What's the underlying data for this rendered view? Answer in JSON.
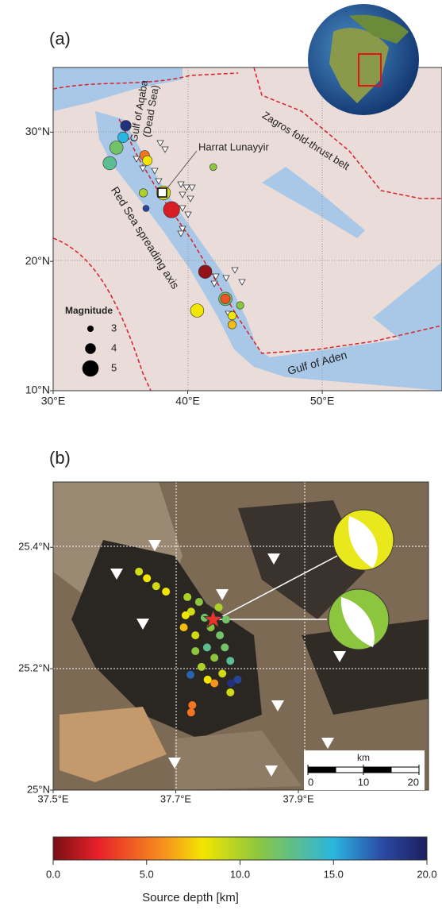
{
  "panel_a": {
    "label": "(a)",
    "xlim": [
      30,
      58.9
    ],
    "ylim": [
      10,
      35
    ],
    "xticks": [
      {
        "value": 30,
        "label": "30°E"
      },
      {
        "value": 40,
        "label": "40°E"
      },
      {
        "value": 50,
        "label": "50°E"
      }
    ],
    "yticks": [
      {
        "value": 10,
        "label": "10°N"
      },
      {
        "value": 20,
        "label": "20°N"
      },
      {
        "value": 30,
        "label": "30°N"
      }
    ],
    "annotations": {
      "aqaba": "Gulf of Aqaba",
      "dead_sea": "(Dead Sea)",
      "zagros": "Zagros fold-thrust belt",
      "harrat": "Harrat Lunayyir",
      "red_sea": "Red Sea spreading axis",
      "aden": "Gulf of Aden"
    },
    "legend": {
      "title": "Magnitude",
      "sizes": [
        3,
        4,
        5
      ]
    },
    "events": [
      {
        "lon": 35.4,
        "lat": 30.5,
        "depth": 19,
        "mag": 4
      },
      {
        "lon": 35.2,
        "lat": 29.6,
        "depth": 15,
        "mag": 4
      },
      {
        "lon": 34.7,
        "lat": 28.8,
        "depth": 12,
        "mag": 4.5
      },
      {
        "lon": 34.2,
        "lat": 27.6,
        "depth": 13,
        "mag": 4.5
      },
      {
        "lon": 36.8,
        "lat": 28.2,
        "depth": 5,
        "mag": 3.8
      },
      {
        "lon": 37.0,
        "lat": 27.8,
        "depth": 8,
        "mag": 3.8
      },
      {
        "lon": 36.7,
        "lat": 25.3,
        "depth": 10,
        "mag": 3.5
      },
      {
        "lon": 38.2,
        "lat": 25.3,
        "depth": 9,
        "mag": 4.6
      },
      {
        "lon": 36.9,
        "lat": 24.1,
        "depth": 18,
        "mag": 3
      },
      {
        "lon": 38.8,
        "lat": 24.0,
        "depth": 2,
        "mag": 5
      },
      {
        "lon": 41.9,
        "lat": 27.3,
        "depth": 11,
        "mag": 3.2
      },
      {
        "lon": 41.3,
        "lat": 19.2,
        "depth": 0.5,
        "mag": 4.5
      },
      {
        "lon": 40.7,
        "lat": 16.2,
        "depth": 8,
        "mag": 4.5
      },
      {
        "lon": 42.8,
        "lat": 17.1,
        "depth": 12,
        "mag": 4.5
      },
      {
        "lon": 42.8,
        "lat": 17.1,
        "depth": 4,
        "mag": 3.8
      },
      {
        "lon": 43.9,
        "lat": 16.6,
        "depth": 11,
        "mag": 3.3
      },
      {
        "lon": 43.3,
        "lat": 15.8,
        "depth": 8,
        "mag": 3.5
      },
      {
        "lon": 43.3,
        "lat": 15.1,
        "depth": 7,
        "mag": 3.5
      }
    ]
  },
  "panel_b": {
    "label": "(b)",
    "xlim": [
      37.5,
      38.1
    ],
    "ylim": [
      25,
      25.5
    ],
    "xticks": [
      {
        "value": 37.5,
        "label": "37.5°E"
      },
      {
        "value": 37.7,
        "label": "37.7°E"
      },
      {
        "value": 37.9,
        "label": "37.9°E"
      }
    ],
    "yticks": [
      {
        "value": 25,
        "label": "25°N"
      },
      {
        "value": 25.2,
        "label": "25.2°N"
      },
      {
        "value": 25.4,
        "label": "25.4°N"
      }
    ],
    "scale_bar": {
      "unit": "km",
      "ticks": [
        0,
        10,
        20
      ]
    },
    "mainshock": {
      "lon": 37.761,
      "lat": 25.281,
      "depth": 3
    },
    "events": [
      {
        "lon": 37.64,
        "lat": 25.36,
        "depth": 9
      },
      {
        "lon": 37.653,
        "lat": 25.349,
        "depth": 8
      },
      {
        "lon": 37.668,
        "lat": 25.336,
        "depth": 9
      },
      {
        "lon": 37.684,
        "lat": 25.327,
        "depth": 8
      },
      {
        "lon": 37.719,
        "lat": 25.318,
        "depth": 10
      },
      {
        "lon": 37.738,
        "lat": 25.31,
        "depth": 11
      },
      {
        "lon": 37.725,
        "lat": 25.294,
        "depth": 9
      },
      {
        "lon": 37.747,
        "lat": 25.284,
        "depth": 12
      },
      {
        "lon": 37.716,
        "lat": 25.288,
        "depth": 8
      },
      {
        "lon": 37.757,
        "lat": 25.268,
        "depth": 11
      },
      {
        "lon": 37.772,
        "lat": 25.255,
        "depth": 12
      },
      {
        "lon": 37.732,
        "lat": 25.255,
        "depth": 9
      },
      {
        "lon": 37.751,
        "lat": 25.235,
        "depth": 13
      },
      {
        "lon": 37.78,
        "lat": 25.235,
        "depth": 12
      },
      {
        "lon": 37.763,
        "lat": 25.218,
        "depth": 11
      },
      {
        "lon": 37.789,
        "lat": 25.213,
        "depth": 13
      },
      {
        "lon": 37.742,
        "lat": 25.203,
        "depth": 10
      },
      {
        "lon": 37.776,
        "lat": 25.192,
        "depth": 9
      },
      {
        "lon": 37.752,
        "lat": 25.182,
        "depth": 8
      },
      {
        "lon": 37.79,
        "lat": 25.176,
        "depth": 19
      },
      {
        "lon": 37.724,
        "lat": 25.19,
        "depth": 17
      },
      {
        "lon": 37.763,
        "lat": 25.176,
        "depth": 6
      },
      {
        "lon": 37.789,
        "lat": 25.161,
        "depth": 9
      },
      {
        "lon": 37.727,
        "lat": 25.14,
        "depth": 5
      },
      {
        "lon": 37.725,
        "lat": 25.128,
        "depth": 5
      },
      {
        "lon": 37.801,
        "lat": 25.182,
        "depth": 18
      },
      {
        "lon": 37.732,
        "lat": 25.229,
        "depth": 11
      },
      {
        "lon": 37.77,
        "lat": 25.301,
        "depth": 10
      },
      {
        "lon": 37.713,
        "lat": 25.268,
        "depth": 7
      },
      {
        "lon": 37.782,
        "lat": 25.281,
        "depth": 12
      }
    ]
  },
  "colorbar": {
    "title": "Source depth [km]",
    "lim": [
      0,
      20
    ],
    "ticks": [
      {
        "value": 0,
        "label": "0.0"
      },
      {
        "value": 5,
        "label": "5.0"
      },
      {
        "value": 10,
        "label": "10.0"
      },
      {
        "value": 15,
        "label": "15.0"
      },
      {
        "value": 20,
        "label": "20.0"
      }
    ]
  }
}
